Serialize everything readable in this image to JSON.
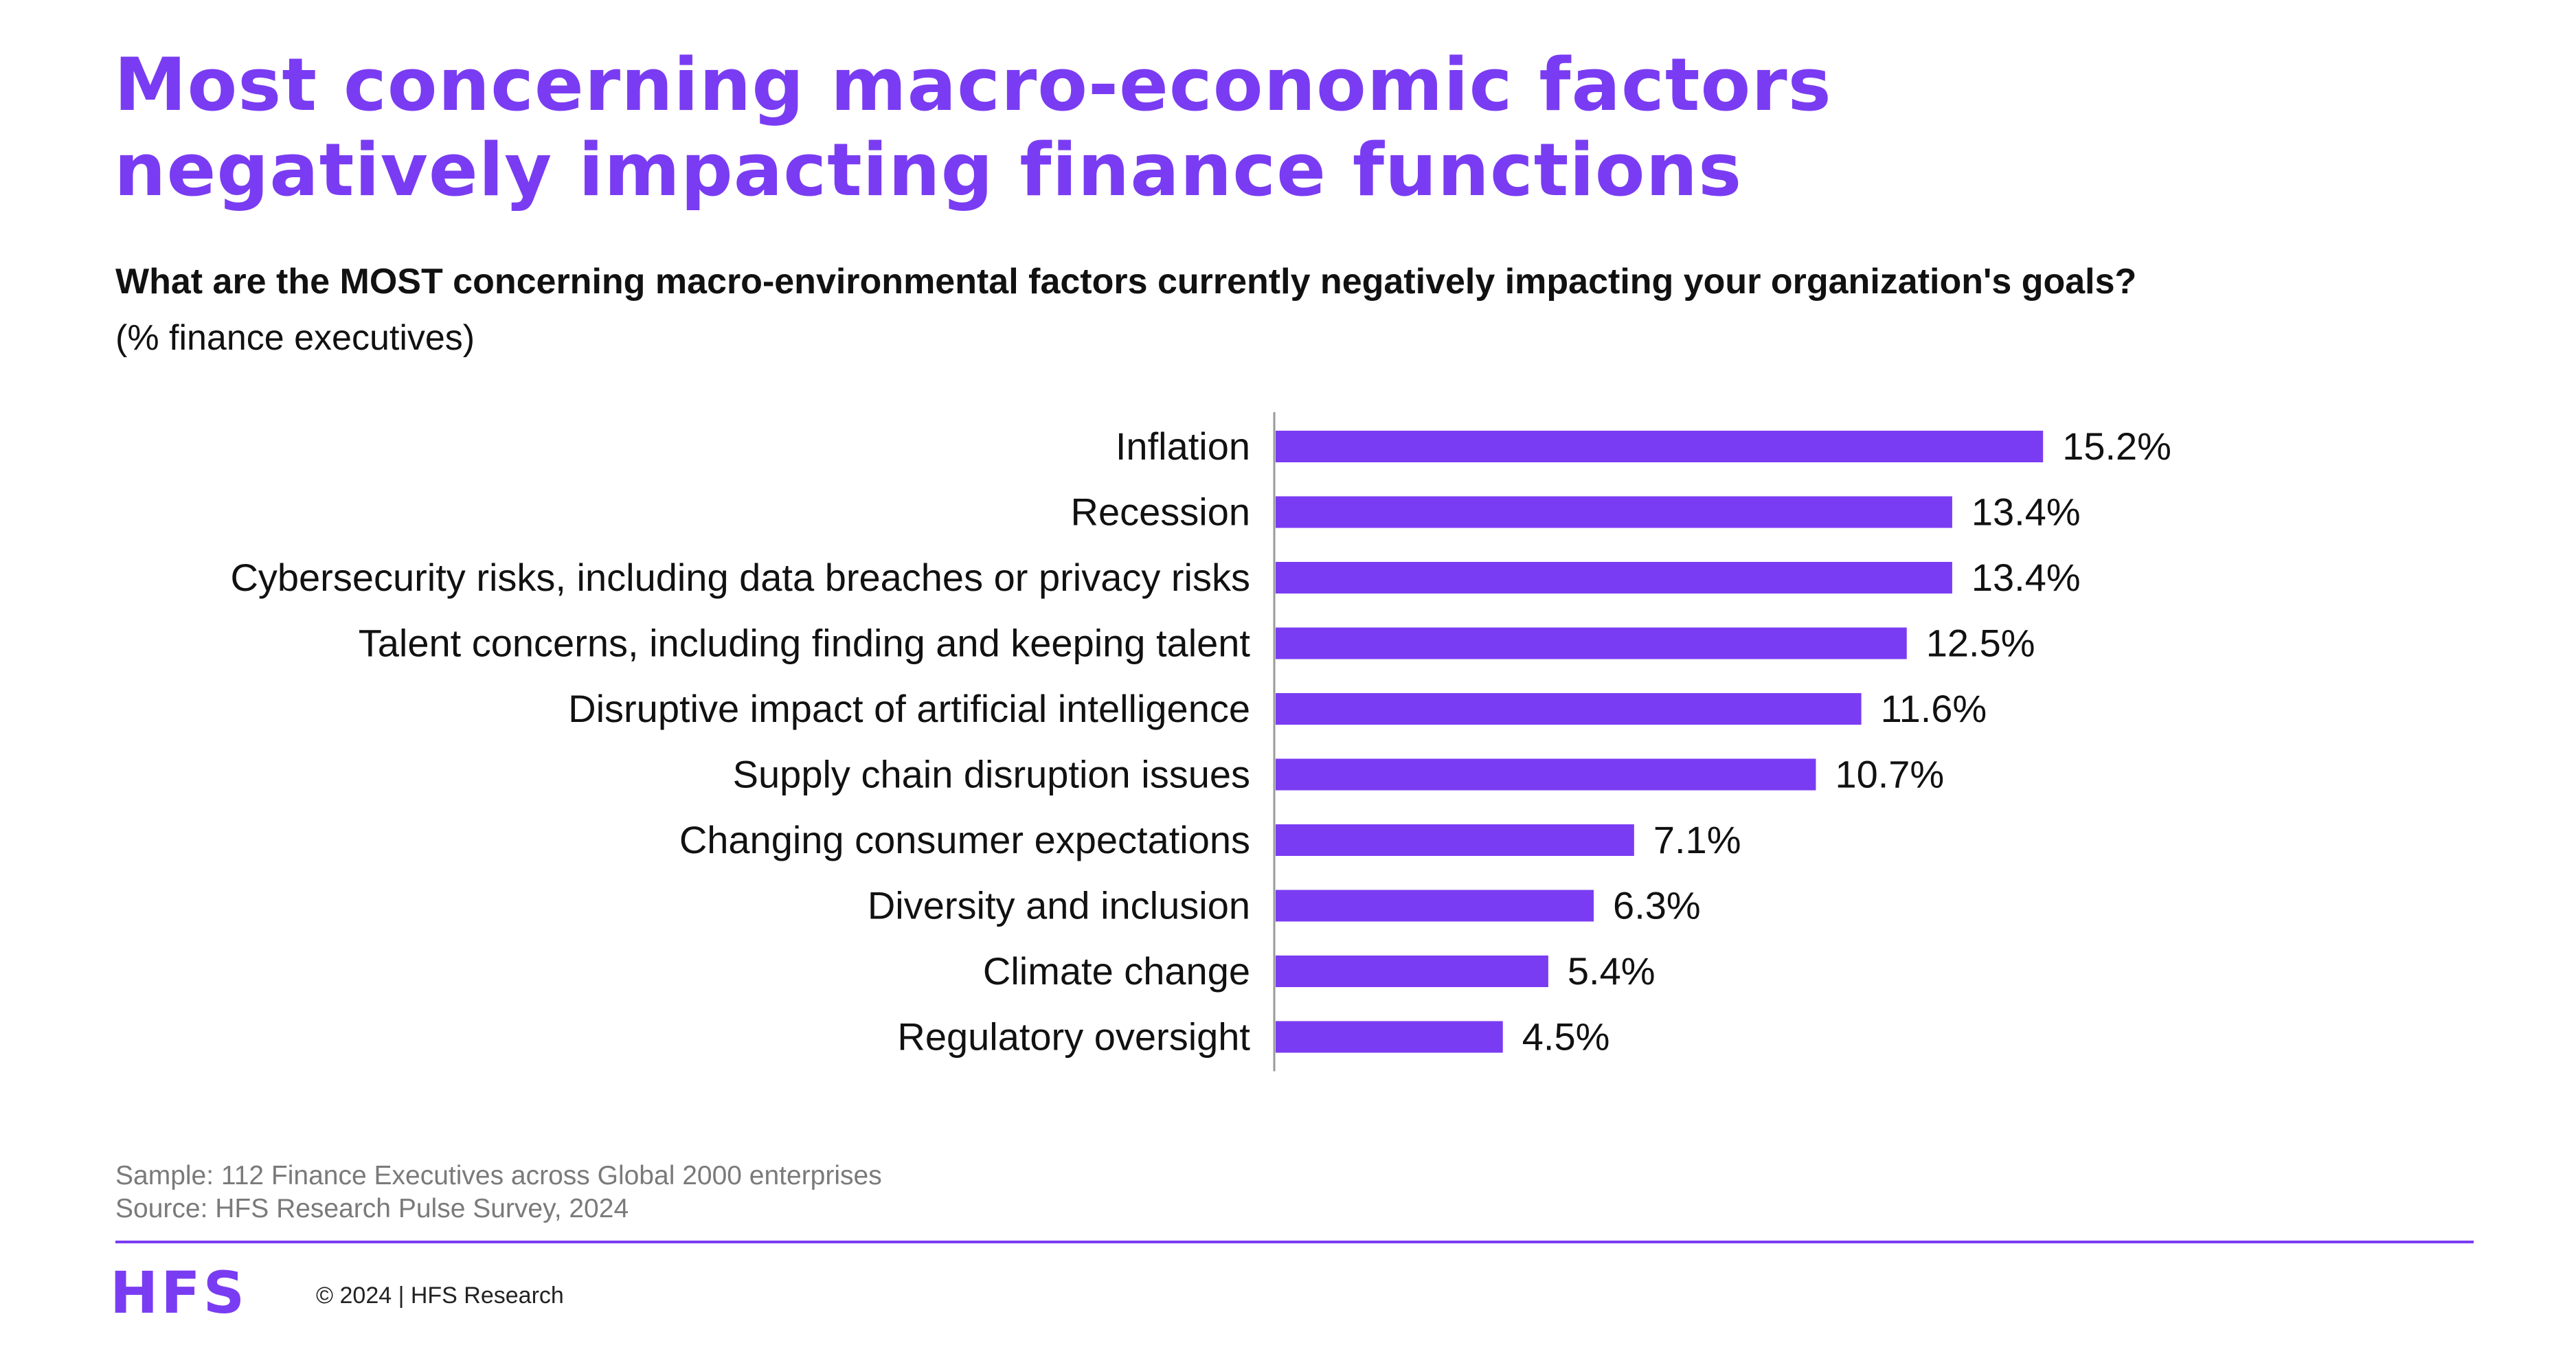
{
  "title": {
    "line1": "Most concerning macro-economic factors",
    "line2": "negatively impacting finance functions"
  },
  "question": "What are the MOST concerning macro-environmental factors currently negatively impacting your organization's goals?",
  "subquestion": "(% finance executives)",
  "chart_data": {
    "type": "bar",
    "orientation": "horizontal",
    "categories": [
      "Inflation",
      "Recession",
      "Cybersecurity risks, including data breaches or privacy risks",
      "Talent concerns, including finding and keeping talent",
      "Disruptive impact of artificial intelligence",
      "Supply chain disruption issues",
      "Changing consumer expectations",
      "Diversity and inclusion",
      "Climate change",
      "Regulatory oversight"
    ],
    "values": [
      15.2,
      13.4,
      13.4,
      12.5,
      11.6,
      10.7,
      7.1,
      6.3,
      5.4,
      4.5
    ],
    "value_labels": [
      "15.2%",
      "13.4%",
      "13.4%",
      "12.5%",
      "11.6%",
      "10.7%",
      "7.1%",
      "6.3%",
      "5.4%",
      "4.5%"
    ],
    "unit": "%",
    "bar_color": "#7a3cf2",
    "grid": false,
    "legend": "none"
  },
  "footer": {
    "sample": "Sample: 112 Finance Executives across Global 2000 enterprises",
    "source": "Source: HFS Research Pulse Survey, 2024",
    "logo_text": "HFS",
    "copyright": "© 2024 | HFS Research"
  },
  "colors": {
    "accent": "#7a3cf2",
    "text": "#111111",
    "muted": "#7a7a7a"
  }
}
